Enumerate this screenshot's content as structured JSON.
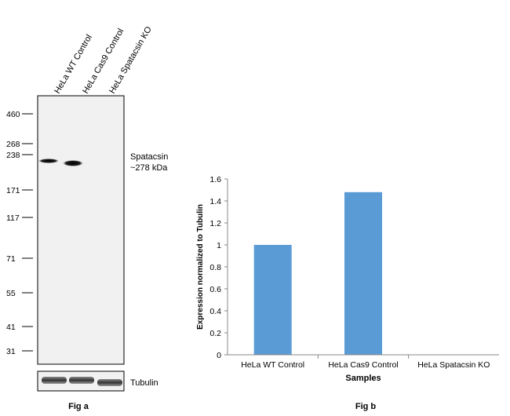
{
  "panel_a": {
    "lane_labels": [
      "HeLa WT Control",
      "HeLa Cas9 Control",
      "HeLa Spatacsin KO"
    ],
    "markers": [
      "460",
      "268",
      "238",
      "171",
      "117",
      "71",
      "55",
      "41",
      "31"
    ],
    "band_label_line1": "Spatacsin",
    "band_label_line2": "~278 kDa",
    "loading_label": "Tubulin",
    "caption": "Fig a",
    "band_intensity": [
      1,
      1,
      0
    ]
  },
  "chart_data": {
    "type": "bar",
    "categories": [
      "HeLa WT Control",
      "HeLa Cas9 Control",
      "HeLa Spatacsin KO"
    ],
    "values": [
      1.0,
      1.48,
      0
    ],
    "xlabel": "Samples",
    "ylabel": "Expression normalized to Tubulin",
    "ylim": [
      0,
      1.6
    ],
    "yticks": [
      "0",
      "0.2",
      "0.4",
      "0.6",
      "0.8",
      "1",
      "1.2",
      "1.4",
      "1.6"
    ],
    "grid": false,
    "bar_color": "#5b9bd5",
    "caption": "Fig b"
  }
}
